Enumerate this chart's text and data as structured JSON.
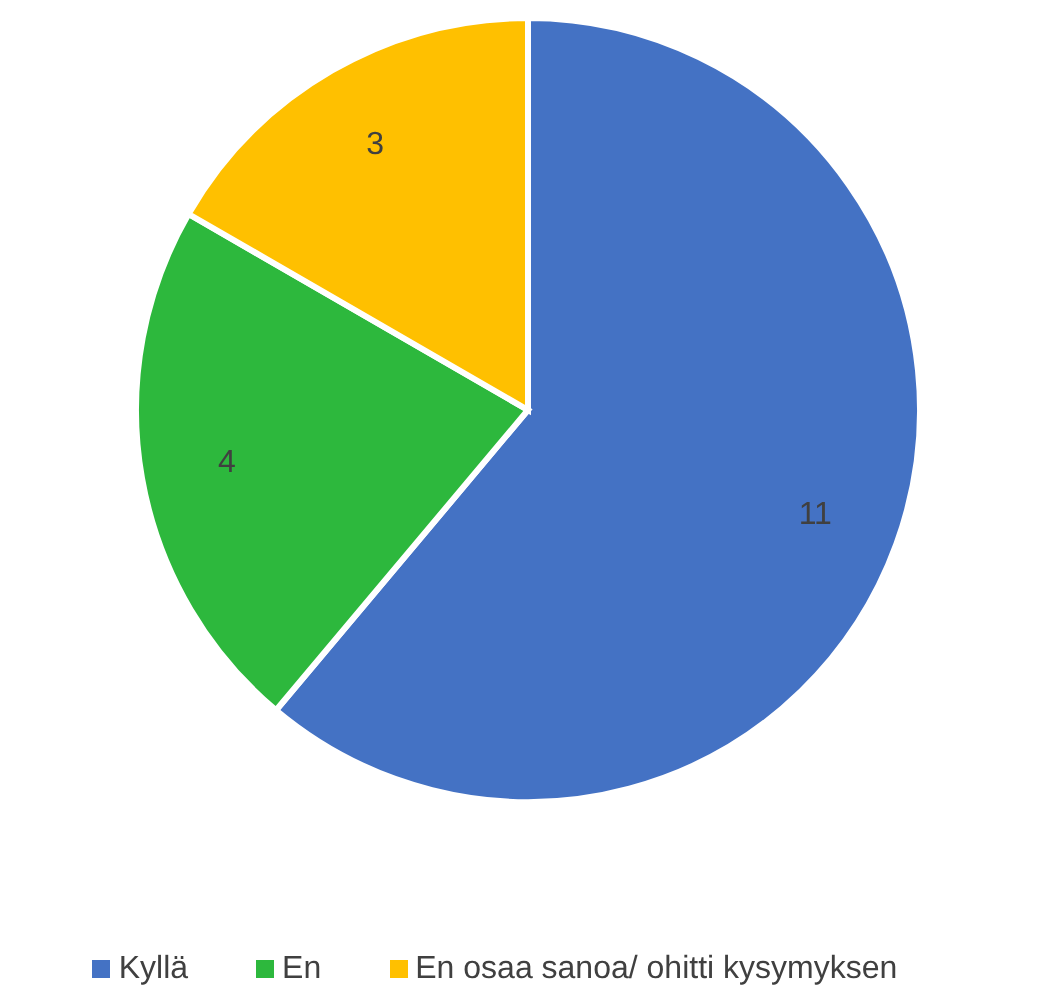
{
  "chart_data": {
    "type": "pie",
    "categories": [
      "Kyllä",
      "En",
      "En osaa sanoa/ ohitti kysymyksen"
    ],
    "values": [
      11,
      4,
      3
    ],
    "colors": [
      "#4472c4",
      "#2db83d",
      "#ffc000"
    ],
    "data_labels": true,
    "legend": "bottom"
  }
}
